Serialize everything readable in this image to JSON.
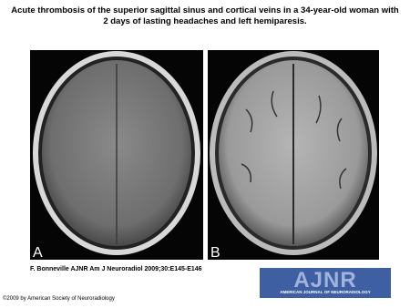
{
  "title": "Acute thrombosis of the superior sagittal sinus and cortical veins in a 34-year-old woman with 2 days of lasting headaches and left hemiparesis.",
  "panels": [
    {
      "label": "A"
    },
    {
      "label": "B"
    }
  ],
  "citation": "F. Bonneville AJNR Am J Neuroradiol 2009;30:E145-E146",
  "logo": {
    "name": "AJNR",
    "subtitle": "AMERICAN JOURNAL OF NEURORADIOLOGY"
  },
  "copyright": "©2009 by American Society of Neuroradiology"
}
